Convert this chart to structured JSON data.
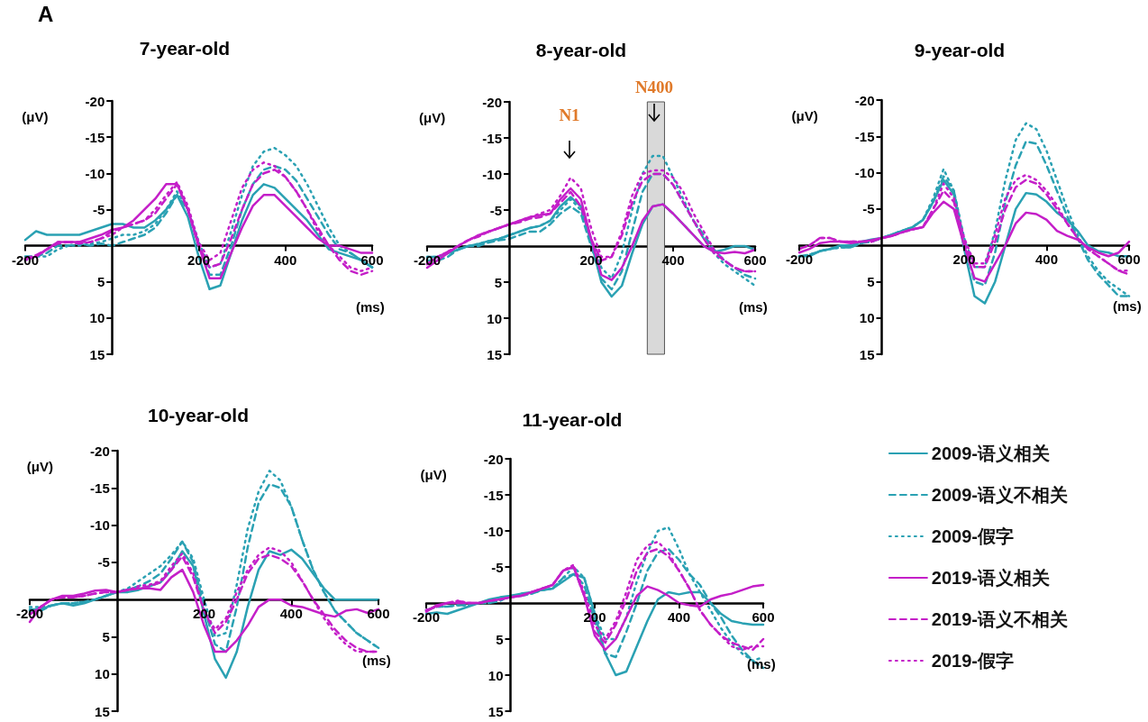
{
  "chart_data": [
    {
      "type": "line",
      "title": "7-year-old",
      "xlabel": "(ms)",
      "ylabel": "(μV)",
      "annotations": [
        "A"
      ],
      "x": [
        -200,
        -175,
        -150,
        -125,
        -100,
        -75,
        -50,
        -25,
        0,
        25,
        50,
        75,
        100,
        125,
        150,
        175,
        200,
        225,
        250,
        275,
        300,
        325,
        350,
        375,
        400,
        425,
        450,
        475,
        500,
        525,
        550,
        575,
        600
      ],
      "xlim": [
        -200,
        600
      ],
      "xticks": [
        -200,
        200,
        400,
        600
      ],
      "ylim": [
        15,
        -20
      ],
      "yticks": [
        -20,
        -15,
        -10,
        -5,
        5,
        10,
        15
      ],
      "series": [
        {
          "color": "#2aa1b3",
          "line_style": "solid",
          "values": [
            -0.8,
            -2,
            -1.5,
            -1.5,
            -1.5,
            -1.5,
            -2,
            -2.5,
            -3,
            -3,
            -2.5,
            -2.5,
            -3.5,
            -5,
            -7,
            -4,
            1.5,
            6,
            5.5,
            1,
            -3.5,
            -7,
            -8.5,
            -8,
            -6.5,
            -5,
            -3.5,
            -1.5,
            0.5,
            1,
            1.5,
            2,
            3
          ]
        },
        {
          "color": "#2aa1b3",
          "line_style": "dashed",
          "values": [
            1.5,
            1.5,
            1,
            0,
            0,
            -0.3,
            0,
            -0.3,
            0,
            -0.5,
            -1,
            -1.5,
            -2.5,
            -4.5,
            -7,
            -5,
            0,
            4,
            4,
            0,
            -5,
            -8.5,
            -10.5,
            -11,
            -10.5,
            -9,
            -6.5,
            -4,
            -1.5,
            0.5,
            1,
            2,
            3
          ]
        },
        {
          "color": "#2aa1b3",
          "line_style": "dotted",
          "values": [
            2,
            1.5,
            1.5,
            0.5,
            0,
            0,
            -0.3,
            -0.5,
            -1,
            -1.5,
            -1.5,
            -2,
            -3,
            -5,
            -7.5,
            -5,
            -0.5,
            3,
            2.5,
            -2,
            -7,
            -11,
            -13,
            -13.5,
            -12.5,
            -11,
            -8.5,
            -5.5,
            -2.5,
            0,
            1,
            2,
            3
          ]
        },
        {
          "color": "#c41fc8",
          "line_style": "solid",
          "values": [
            1.8,
            1.5,
            0.5,
            -0.5,
            -0.5,
            -0.5,
            -1,
            -1.5,
            -2.2,
            -2.5,
            -3.5,
            -5,
            -6.5,
            -8.5,
            -8.5,
            -5,
            0,
            4.5,
            4.5,
            1,
            -2.5,
            -5.5,
            -7,
            -7,
            -5.5,
            -4,
            -2.5,
            -1,
            0,
            0,
            0.5,
            1,
            1
          ]
        },
        {
          "color": "#c41fc8",
          "line_style": "dashed",
          "values": [
            1.8,
            1.3,
            0.5,
            -0.3,
            -0.5,
            -0.3,
            -0.5,
            -1,
            -2,
            -2.5,
            -3,
            -3.5,
            -4.5,
            -6.5,
            -8.5,
            -5,
            0,
            3,
            2.5,
            -1,
            -5,
            -8.5,
            -10,
            -10.5,
            -9.5,
            -7.5,
            -5,
            -2.5,
            0,
            2,
            3.5,
            4,
            3.5
          ]
        },
        {
          "color": "#c41fc8",
          "line_style": "dotted",
          "values": [
            2,
            1.5,
            0.5,
            -0.5,
            -0.5,
            -0.5,
            -0.5,
            -1,
            -1.5,
            -2.5,
            -3,
            -3.5,
            -5,
            -7,
            -8.8,
            -5.5,
            -0.5,
            2,
            1,
            -3.5,
            -8,
            -10.5,
            -11.5,
            -11,
            -9.5,
            -7.5,
            -5,
            -2,
            0,
            1.5,
            3,
            3.5,
            3
          ]
        }
      ]
    },
    {
      "type": "line",
      "title": "8-year-old",
      "xlabel": "(ms)",
      "ylabel": "(μV)",
      "annotations": [
        "N1",
        "N400"
      ],
      "bands": [
        {
          "axis": "x",
          "from": 337,
          "to": 379,
          "color": "#d9d9d9"
        }
      ],
      "x": [
        -200,
        -175,
        -150,
        -125,
        -100,
        -75,
        -50,
        -25,
        0,
        25,
        50,
        75,
        100,
        125,
        150,
        175,
        200,
        225,
        250,
        275,
        300,
        325,
        350,
        375,
        400,
        425,
        450,
        475,
        500,
        525,
        550,
        575,
        600
      ],
      "xlim": [
        -200,
        600
      ],
      "xticks": [
        -200,
        200,
        400,
        600
      ],
      "ylim": [
        15,
        -20
      ],
      "yticks": [
        -20,
        -15,
        -10,
        -5,
        5,
        10,
        15
      ],
      "series": [
        {
          "color": "#2aa1b3",
          "line_style": "solid",
          "values": [
            1.5,
            1.5,
            1,
            0.5,
            0,
            -0.3,
            -0.7,
            -1,
            -1.5,
            -2,
            -2.5,
            -2.8,
            -3.5,
            -5.5,
            -6.8,
            -5.5,
            -0.5,
            5,
            7,
            5.5,
            1,
            -3,
            -5.5,
            -5.8,
            -4.5,
            -3,
            -1.5,
            0,
            0.8,
            0.5,
            0,
            0,
            0.5
          ]
        },
        {
          "color": "#2aa1b3",
          "line_style": "dashed",
          "values": [
            2,
            2,
            1.5,
            0.5,
            0,
            0,
            -0.5,
            -0.8,
            -1,
            -1.5,
            -2,
            -2,
            -3,
            -4.5,
            -5.5,
            -4.5,
            0,
            4.5,
            6,
            3.5,
            -2,
            -7.5,
            -10,
            -10,
            -8.5,
            -6,
            -3.5,
            -1.5,
            0.5,
            2,
            3,
            4,
            4.5
          ]
        },
        {
          "color": "#2aa1b3",
          "line_style": "dotted",
          "values": [
            1.5,
            1.5,
            1,
            0.5,
            0,
            -0.3,
            -0.7,
            -1,
            -1.5,
            -2,
            -2.5,
            -2.8,
            -3.5,
            -5,
            -6.5,
            -5,
            -1,
            3,
            4.5,
            1,
            -5,
            -10,
            -12.5,
            -12.5,
            -9.5,
            -6.5,
            -3.5,
            -1,
            1,
            2.5,
            3.5,
            4.5,
            5.5
          ]
        },
        {
          "color": "#c41fc8",
          "line_style": "solid",
          "values": [
            3,
            2,
            1,
            0,
            -0.8,
            -1.5,
            -2,
            -2.5,
            -3,
            -3.5,
            -4,
            -4.3,
            -4.5,
            -6.5,
            -8,
            -6.5,
            -1,
            4,
            4.7,
            3,
            0,
            -3.5,
            -5.5,
            -5.8,
            -4.5,
            -3,
            -1.5,
            0,
            0.8,
            1,
            0.8,
            1,
            0.5
          ]
        },
        {
          "color": "#c41fc8",
          "line_style": "dashed",
          "values": [
            2.5,
            1.5,
            0.8,
            0,
            -0.8,
            -1.3,
            -2,
            -2.5,
            -3,
            -3.3,
            -3.8,
            -4,
            -4.5,
            -6,
            -7.5,
            -5.5,
            -1,
            2,
            1.5,
            -1.5,
            -6,
            -9,
            -10,
            -10,
            -8.5,
            -6,
            -3.5,
            -1,
            1,
            2,
            3,
            3.5,
            3.5
          ]
        },
        {
          "color": "#c41fc8",
          "line_style": "dotted",
          "values": [
            2.5,
            1.5,
            0.8,
            0,
            -0.8,
            -1.5,
            -2,
            -2.5,
            -3,
            -3.5,
            -4,
            -4.5,
            -5,
            -7,
            -9.5,
            -8,
            -2.5,
            1.5,
            1.5,
            -2,
            -7,
            -10,
            -10.5,
            -10.5,
            -9.5,
            -7.5,
            -4.5,
            -2,
            0.5,
            2,
            3,
            3.5,
            3.5
          ]
        }
      ]
    },
    {
      "type": "line",
      "title": "9-year-old",
      "xlabel": "(ms)",
      "ylabel": "(μV)",
      "x": [
        -200,
        -175,
        -150,
        -125,
        -100,
        -75,
        -50,
        -25,
        0,
        25,
        50,
        75,
        100,
        125,
        150,
        175,
        200,
        225,
        250,
        275,
        300,
        325,
        350,
        375,
        400,
        425,
        450,
        475,
        500,
        525,
        550,
        575,
        600
      ],
      "xlim": [
        -200,
        600
      ],
      "xticks": [
        -200,
        200,
        400,
        600
      ],
      "ylim": [
        15,
        -20
      ],
      "yticks": [
        -20,
        -15,
        -10,
        -5,
        5,
        10,
        15
      ],
      "series": [
        {
          "color": "#2aa1b3",
          "line_style": "solid",
          "values": [
            1.5,
            1.5,
            0.8,
            0.5,
            0,
            0,
            -0.5,
            -0.8,
            -1,
            -1.5,
            -2,
            -2.5,
            -3.5,
            -6,
            -9,
            -7,
            0.5,
            7,
            8,
            5,
            0,
            -5,
            -7.2,
            -7,
            -6,
            -4.5,
            -3.5,
            -2,
            0,
            0.8,
            1,
            1.5,
            1.5
          ]
        },
        {
          "color": "#2aa1b3",
          "line_style": "dashed",
          "values": [
            1.5,
            1.3,
            0.8,
            0.5,
            0.3,
            0.3,
            -0.3,
            -0.5,
            -1,
            -1.5,
            -2,
            -2.5,
            -3.5,
            -6,
            -9.5,
            -7.5,
            -0.5,
            5,
            5.5,
            1,
            -6,
            -11,
            -14.3,
            -14,
            -11,
            -7.5,
            -4,
            -1,
            2,
            4,
            5.5,
            7,
            7
          ]
        },
        {
          "color": "#2aa1b3",
          "line_style": "dotted",
          "values": [
            1.5,
            1.3,
            0.8,
            0.5,
            0.3,
            0.3,
            -0.3,
            -0.5,
            -1,
            -1.5,
            -2,
            -2.5,
            -3.5,
            -6.5,
            -10.5,
            -7.5,
            -1,
            3,
            3,
            -2,
            -9,
            -14.5,
            -16.8,
            -16,
            -13,
            -9,
            -5,
            -1.5,
            1.5,
            3.5,
            5,
            6,
            7
          ]
        },
        {
          "color": "#c41fc8",
          "line_style": "solid",
          "values": [
            1,
            0.5,
            -0.3,
            -0.5,
            -0.5,
            -0.3,
            -0.5,
            -0.7,
            -1,
            -1.3,
            -1.8,
            -2.2,
            -2.5,
            -4.5,
            -6,
            -5,
            0,
            4.5,
            5,
            2.5,
            0,
            -3,
            -4.5,
            -4.3,
            -3.5,
            -2,
            -1.3,
            -0.8,
            0.3,
            1,
            1.5,
            1,
            -0.5
          ]
        },
        {
          "color": "#c41fc8",
          "line_style": "dashed",
          "values": [
            0.5,
            0,
            -1,
            -1,
            -0.5,
            -0.5,
            -0.5,
            -0.5,
            -1,
            -1.3,
            -1.8,
            -2.2,
            -2.5,
            -5,
            -7.5,
            -6,
            -0.5,
            3,
            3,
            -0.5,
            -5,
            -8,
            -9,
            -8.5,
            -7,
            -5,
            -3,
            -1,
            0.5,
            1.5,
            2.5,
            3.5,
            4
          ]
        },
        {
          "color": "#c41fc8",
          "line_style": "dotted",
          "values": [
            0.5,
            0,
            -1,
            -1,
            -0.5,
            -0.5,
            -0.5,
            -0.5,
            -1,
            -1.3,
            -1.8,
            -2.2,
            -2.5,
            -5,
            -8.5,
            -6.5,
            -1,
            2.5,
            2.5,
            -1.5,
            -6.5,
            -9,
            -9.7,
            -9,
            -7.5,
            -5.5,
            -3,
            -1,
            0.5,
            1.5,
            2.5,
            3.5,
            3.5
          ]
        }
      ]
    },
    {
      "type": "line",
      "title": "10-year-old",
      "xlabel": "(ms)",
      "ylabel": "(μV)",
      "x": [
        -200,
        -175,
        -150,
        -125,
        -100,
        -75,
        -50,
        -25,
        0,
        25,
        50,
        75,
        100,
        125,
        150,
        175,
        200,
        225,
        250,
        275,
        300,
        325,
        350,
        375,
        400,
        425,
        450,
        475,
        500,
        525,
        550,
        575,
        600
      ],
      "xlim": [
        -200,
        600
      ],
      "xticks": [
        -200,
        200,
        400,
        600
      ],
      "ylim": [
        15,
        -20
      ],
      "yticks": [
        -20,
        -15,
        -10,
        -5,
        5,
        10,
        15
      ],
      "series": [
        {
          "color": "#2aa1b3",
          "line_style": "solid",
          "values": [
            1.3,
            1.3,
            0.8,
            0.5,
            0.8,
            0.5,
            0,
            -0.5,
            -1,
            -1,
            -1.3,
            -1.8,
            -2.3,
            -4,
            -6.5,
            -4.5,
            2,
            8,
            10.5,
            7,
            1,
            -4,
            -6.5,
            -6,
            -6.7,
            -5.5,
            -3.5,
            -1.5,
            0,
            0,
            0,
            0,
            0
          ]
        },
        {
          "color": "#2aa1b3",
          "line_style": "dashed",
          "values": [
            1.5,
            1.5,
            0.8,
            0.5,
            0.5,
            0.3,
            0,
            -0.5,
            -1,
            -1.3,
            -1.8,
            -2.5,
            -3.5,
            -5.5,
            -7.8,
            -5,
            1,
            6,
            7,
            1,
            -7,
            -13,
            -15.5,
            -15,
            -12.5,
            -8,
            -4,
            -1,
            1.5,
            3,
            4.5,
            5.5,
            6.5
          ]
        },
        {
          "color": "#2aa1b3",
          "line_style": "dotted",
          "values": [
            1,
            1,
            0.8,
            0.5,
            0.5,
            0.3,
            0,
            -0.5,
            -1,
            -1.5,
            -2.5,
            -3.5,
            -4.5,
            -6,
            -7.8,
            -5.5,
            0,
            5,
            4.5,
            -2,
            -9.5,
            -14.5,
            -17.3,
            -16,
            -12.5,
            -8,
            -4,
            -1,
            1.5,
            3,
            4.5,
            5.5,
            6.5
          ]
        },
        {
          "color": "#c41fc8",
          "line_style": "solid",
          "values": [
            3,
            1,
            0,
            -0.5,
            -0.5,
            -0.8,
            -1.2,
            -1.3,
            -1,
            -1.3,
            -1.5,
            -1.5,
            -1.3,
            -3,
            -4,
            -1,
            3.5,
            7,
            7,
            5.5,
            3.5,
            1,
            0,
            0,
            0.8,
            1,
            1.5,
            2,
            2.3,
            1.5,
            1.3,
            1.8,
            1.3
          ]
        },
        {
          "color": "#c41fc8",
          "line_style": "dashed",
          "values": [
            2,
            1,
            0,
            -0.3,
            -0.3,
            -0.5,
            -0.8,
            -1,
            -1,
            -1.3,
            -1.5,
            -1.8,
            -2.3,
            -4,
            -5.8,
            -3,
            1.5,
            4.5,
            3,
            0,
            -3.5,
            -5.5,
            -6,
            -5.5,
            -4.5,
            -2.5,
            0,
            2,
            4,
            5.5,
            6.5,
            7,
            7
          ]
        },
        {
          "color": "#c41fc8",
          "line_style": "dotted",
          "values": [
            2,
            1,
            0,
            -0.3,
            -0.3,
            -0.5,
            -0.8,
            -1,
            -1,
            -1.3,
            -1.8,
            -2,
            -2.5,
            -4.5,
            -6.2,
            -3.5,
            1.5,
            4,
            2.5,
            -1,
            -4,
            -6,
            -7,
            -6.5,
            -5,
            -2.5,
            0,
            2.5,
            4.5,
            6,
            7,
            7,
            7
          ]
        }
      ]
    },
    {
      "type": "line",
      "title": "11-year-old",
      "xlabel": "(ms)",
      "ylabel": "(μV)",
      "legend": "right",
      "x": [
        -200,
        -175,
        -150,
        -125,
        -100,
        -75,
        -50,
        -25,
        0,
        25,
        50,
        75,
        100,
        125,
        150,
        175,
        200,
        225,
        250,
        275,
        300,
        325,
        350,
        375,
        400,
        425,
        450,
        475,
        500,
        525,
        550,
        575,
        600
      ],
      "xlim": [
        -200,
        600
      ],
      "xticks": [
        -200,
        200,
        400,
        600
      ],
      "ylim": [
        15,
        -20
      ],
      "yticks": [
        -20,
        -15,
        -10,
        -5,
        5,
        10,
        15
      ],
      "series": [
        {
          "name": "2009-语义相关",
          "color": "#2aa1b3",
          "line_style": "solid",
          "values": [
            1.5,
            1.3,
            1.5,
            1,
            0.5,
            0,
            -0.5,
            -0.8,
            -1,
            -1.3,
            -1.5,
            -1.8,
            -2,
            -3,
            -4,
            -3.5,
            1.5,
            7,
            10,
            9.5,
            6,
            2.5,
            -0.5,
            -1.5,
            -1.2,
            -1.5,
            -1.5,
            0,
            1.5,
            2.5,
            2.8,
            3,
            3
          ]
        },
        {
          "name": "2009-语义不相关",
          "color": "#2aa1b3",
          "line_style": "dashed",
          "values": [
            1,
            0.5,
            0.5,
            0.3,
            0.3,
            0,
            0,
            -0.3,
            -1,
            -1,
            -1.3,
            -1.8,
            -2,
            -3.5,
            -4,
            -2.5,
            2.5,
            7,
            7.5,
            4,
            0,
            -4.5,
            -7,
            -7.5,
            -6,
            -4,
            -2.5,
            0,
            2,
            4.5,
            6.5,
            8,
            9
          ]
        },
        {
          "name": "2009-假字",
          "color": "#2aa1b3",
          "line_style": "dotted",
          "values": [
            1,
            0.5,
            0.5,
            0.3,
            0.3,
            0,
            0,
            -0.3,
            -1,
            -1,
            -1.3,
            -1.8,
            -2,
            -3.5,
            -5,
            -3.5,
            1.5,
            5,
            5,
            2,
            -3,
            -7,
            -10,
            -10.5,
            -7.5,
            -4,
            -1.5,
            1,
            3.5,
            5.5,
            7,
            8,
            7.5
          ]
        },
        {
          "name": "2019-语义相关",
          "color": "#c41fc8",
          "line_style": "solid",
          "values": [
            1.2,
            0.3,
            0,
            0,
            0,
            0,
            -0.3,
            -0.5,
            -0.8,
            -1,
            -1.5,
            -2,
            -2.5,
            -4.5,
            -5,
            -1,
            4.5,
            6.5,
            5,
            2,
            -1,
            -2.3,
            -1.8,
            -1,
            0,
            0.3,
            0.5,
            -0.5,
            -1,
            -1.3,
            -1.8,
            -2.3,
            -2.5
          ]
        },
        {
          "name": "2019-语义不相关",
          "color": "#c41fc8",
          "line_style": "dashed",
          "values": [
            1,
            0.5,
            0,
            -0.3,
            0,
            0,
            -0.3,
            -0.5,
            -0.8,
            -1,
            -1.5,
            -2,
            -2.5,
            -4.5,
            -5,
            -1,
            4,
            5.5,
            3,
            -0.5,
            -4.5,
            -7,
            -7.5,
            -6.5,
            -4.5,
            -2,
            1,
            3,
            4.5,
            5.5,
            6,
            6.5,
            5
          ]
        },
        {
          "name": "2019-假字",
          "color": "#c41fc8",
          "line_style": "dotted",
          "values": [
            1,
            0.5,
            0,
            -0.3,
            0,
            0,
            -0.3,
            -0.5,
            -0.8,
            -1,
            -1.5,
            -2,
            -2.5,
            -4.5,
            -5.3,
            -1.5,
            3,
            5,
            2.5,
            -1.5,
            -6,
            -8,
            -8.5,
            -7,
            -4.5,
            -2,
            1,
            3,
            4.5,
            6,
            6.5,
            6,
            6
          ]
        }
      ]
    }
  ]
}
